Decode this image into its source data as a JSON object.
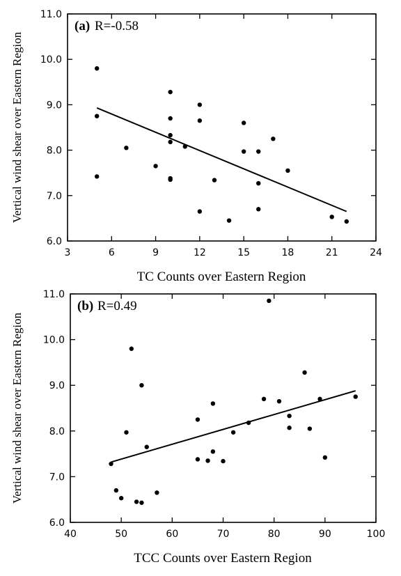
{
  "chart_data": [
    {
      "type": "scatter",
      "panel_label": "(a)",
      "annotation": "R=-0.58",
      "xlabel": "TC Counts over Eastern Region",
      "ylabel": "Vertical wind shear over Eastern Region",
      "xlim": [
        3,
        24
      ],
      "ylim": [
        6.0,
        11.0
      ],
      "xticks": [
        "3",
        "6",
        "9",
        "12",
        "15",
        "18",
        "21",
        "24"
      ],
      "yticks": [
        "6.0",
        "7.0",
        "8.0",
        "9.0",
        "10.0",
        "11.0"
      ],
      "grid": false,
      "points": [
        {
          "x": 5,
          "y": 9.8
        },
        {
          "x": 5,
          "y": 8.75
        },
        {
          "x": 5,
          "y": 7.42
        },
        {
          "x": 7,
          "y": 8.05
        },
        {
          "x": 9,
          "y": 7.65
        },
        {
          "x": 10,
          "y": 9.28
        },
        {
          "x": 10,
          "y": 8.7
        },
        {
          "x": 10,
          "y": 8.33
        },
        {
          "x": 10,
          "y": 8.18
        },
        {
          "x": 10,
          "y": 7.38
        },
        {
          "x": 10,
          "y": 7.35
        },
        {
          "x": 11,
          "y": 8.08
        },
        {
          "x": 12,
          "y": 9.0
        },
        {
          "x": 12,
          "y": 8.65
        },
        {
          "x": 12,
          "y": 6.65
        },
        {
          "x": 13,
          "y": 7.34
        },
        {
          "x": 14,
          "y": 6.45
        },
        {
          "x": 15,
          "y": 8.6
        },
        {
          "x": 15,
          "y": 7.97
        },
        {
          "x": 16,
          "y": 7.97
        },
        {
          "x": 16,
          "y": 7.27
        },
        {
          "x": 16,
          "y": 6.7
        },
        {
          "x": 17,
          "y": 8.25
        },
        {
          "x": 18,
          "y": 7.55
        },
        {
          "x": 21,
          "y": 6.53
        },
        {
          "x": 22,
          "y": 6.43
        }
      ],
      "fit_line": [
        {
          "x": 5,
          "y": 8.93
        },
        {
          "x": 22,
          "y": 6.65
        }
      ]
    },
    {
      "type": "scatter",
      "panel_label": "(b)",
      "annotation": "R=0.49",
      "xlabel": "TCC Counts over Eastern Region",
      "ylabel": "Vertical wind shear over Eastern Region",
      "xlim": [
        40,
        100
      ],
      "ylim": [
        6.0,
        11.0
      ],
      "xticks": [
        "40",
        "50",
        "60",
        "70",
        "80",
        "90",
        "100"
      ],
      "yticks": [
        "6.0",
        "7.0",
        "8.0",
        "9.0",
        "10.0",
        "11.0"
      ],
      "grid": false,
      "points": [
        {
          "x": 48,
          "y": 7.28
        },
        {
          "x": 49,
          "y": 6.7
        },
        {
          "x": 50,
          "y": 6.53
        },
        {
          "x": 51,
          "y": 7.97
        },
        {
          "x": 52,
          "y": 9.8
        },
        {
          "x": 53,
          "y": 6.45
        },
        {
          "x": 54,
          "y": 9.0
        },
        {
          "x": 54,
          "y": 6.43
        },
        {
          "x": 55,
          "y": 7.65
        },
        {
          "x": 57,
          "y": 6.65
        },
        {
          "x": 65,
          "y": 8.25
        },
        {
          "x": 65,
          "y": 7.38
        },
        {
          "x": 67,
          "y": 7.35
        },
        {
          "x": 68,
          "y": 8.6
        },
        {
          "x": 68,
          "y": 7.55
        },
        {
          "x": 70,
          "y": 7.34
        },
        {
          "x": 72,
          "y": 7.97
        },
        {
          "x": 75,
          "y": 8.18
        },
        {
          "x": 78,
          "y": 8.7
        },
        {
          "x": 79,
          "y": 10.85
        },
        {
          "x": 81,
          "y": 8.65
        },
        {
          "x": 83,
          "y": 8.33
        },
        {
          "x": 83,
          "y": 8.07
        },
        {
          "x": 86,
          "y": 9.28
        },
        {
          "x": 87,
          "y": 8.05
        },
        {
          "x": 89,
          "y": 8.7
        },
        {
          "x": 90,
          "y": 7.42
        },
        {
          "x": 96,
          "y": 8.75
        }
      ],
      "fit_line": [
        {
          "x": 48,
          "y": 7.32
        },
        {
          "x": 96,
          "y": 8.88
        }
      ]
    }
  ]
}
